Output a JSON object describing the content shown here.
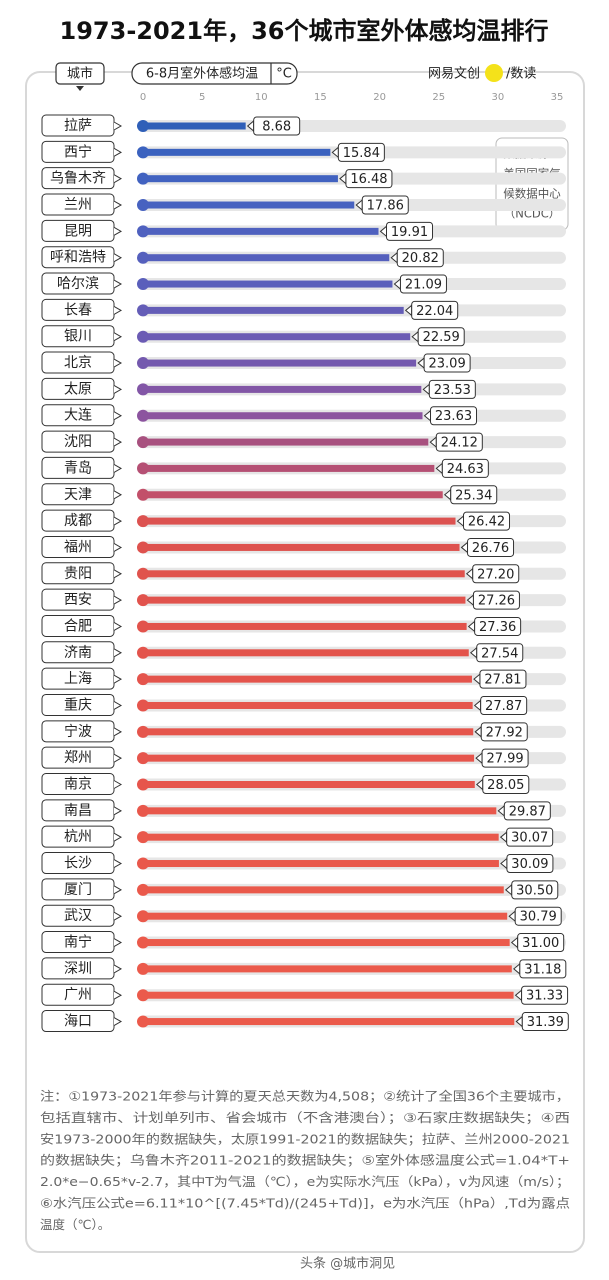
{
  "chart_data": {
    "type": "bar",
    "title": "1973-2021年，36个城市室外体感均温排行",
    "category_header": "城市",
    "value_header": "6-8月室外体感均温",
    "unit": "°C",
    "brand": "网易文创",
    "brand_sub": "/数读",
    "source_lines": [
      "数据来源：",
      "美国国家气",
      "候数据中心",
      "（NCDC）"
    ],
    "categories": [
      "拉萨",
      "西宁",
      "乌鲁木齐",
      "兰州",
      "昆明",
      "呼和浩特",
      "哈尔滨",
      "长春",
      "银川",
      "北京",
      "太原",
      "大连",
      "沈阳",
      "青岛",
      "天津",
      "成都",
      "福州",
      "贵阳",
      "西安",
      "合肥",
      "济南",
      "上海",
      "重庆",
      "宁波",
      "郑州",
      "南京",
      "南昌",
      "杭州",
      "长沙",
      "厦门",
      "武汉",
      "南宁",
      "深圳",
      "广州",
      "海口"
    ],
    "values": [
      8.68,
      15.84,
      16.48,
      17.86,
      19.91,
      20.82,
      21.09,
      22.04,
      22.59,
      23.09,
      23.53,
      23.63,
      24.12,
      24.63,
      25.34,
      26.42,
      26.76,
      27.2,
      27.26,
      27.36,
      27.54,
      27.81,
      27.87,
      27.92,
      27.99,
      28.05,
      29.87,
      30.07,
      30.09,
      30.5,
      30.79,
      31,
      31.18,
      31.33,
      31.39
    ],
    "value_labels": [
      "8.68",
      "15.84",
      "16.48",
      "17.86",
      "19.91",
      "20.82",
      "21.09",
      "22.04",
      "22.59",
      "23.09",
      "23.53",
      "23.63",
      "24.12",
      "24.63",
      "25.34",
      "26.42",
      "26.76",
      "27.20",
      "27.26",
      "27.36",
      "27.54",
      "27.81",
      "27.87",
      "27.92",
      "27.99",
      "28.05",
      "29.87",
      "30.07",
      "30.09",
      "30.50",
      "30.79",
      "31.00",
      "31.18",
      "31.33",
      "31.39"
    ],
    "colors": [
      "#2f5fb8",
      "#3b62bf",
      "#4162c0",
      "#4762c0",
      "#4f61bf",
      "#5560bd",
      "#5a5fbb",
      "#645db7",
      "#6b5bb4",
      "#7459ae",
      "#8256a6",
      "#8c549f",
      "#a8517f",
      "#b55074",
      "#c2506a",
      "#dc5250",
      "#de524e",
      "#e0534d",
      "#e1534d",
      "#e2534c",
      "#e3544c",
      "#e4544c",
      "#e5554c",
      "#e5554c",
      "#e6554c",
      "#e6554c",
      "#e8574b",
      "#e9584b",
      "#e9584b",
      "#ea594b",
      "#ea594b",
      "#eb5a4b",
      "#eb5a4b",
      "#eb5a4b",
      "#eb5a4b"
    ],
    "xlim": [
      0,
      35
    ],
    "xticks": [
      0,
      5,
      10,
      15,
      20,
      25,
      30,
      35
    ],
    "note_lines": [
      "注：①1973-2021年参与计算的夏天总天数为4,508；②统计了全国36个主要城市，",
      "包括直辖市、计划单列市、省会城市（不含港澳台）；③石家庄数据缺失；④西",
      "安1973-2000年的数据缺失，太原1991-2021的数据缺失；拉萨、兰州2000-2021",
      "的数据缺失；乌鲁木齐2011-2021的数据缺失；⑤室外体感温度公式=1.04*T+",
      "2.0*e−0.65*v-2.7，其中T为气温（℃），e为实际水汽压（kPa），v为风速（m/s）；",
      "⑥水汽压公式e=6.11*10^[(7.45*Td)/(245+Td)]，e为水汽压（hPa）,Td为露点",
      "温度（℃）。"
    ],
    "watermark": "头条 @城市洞见"
  }
}
